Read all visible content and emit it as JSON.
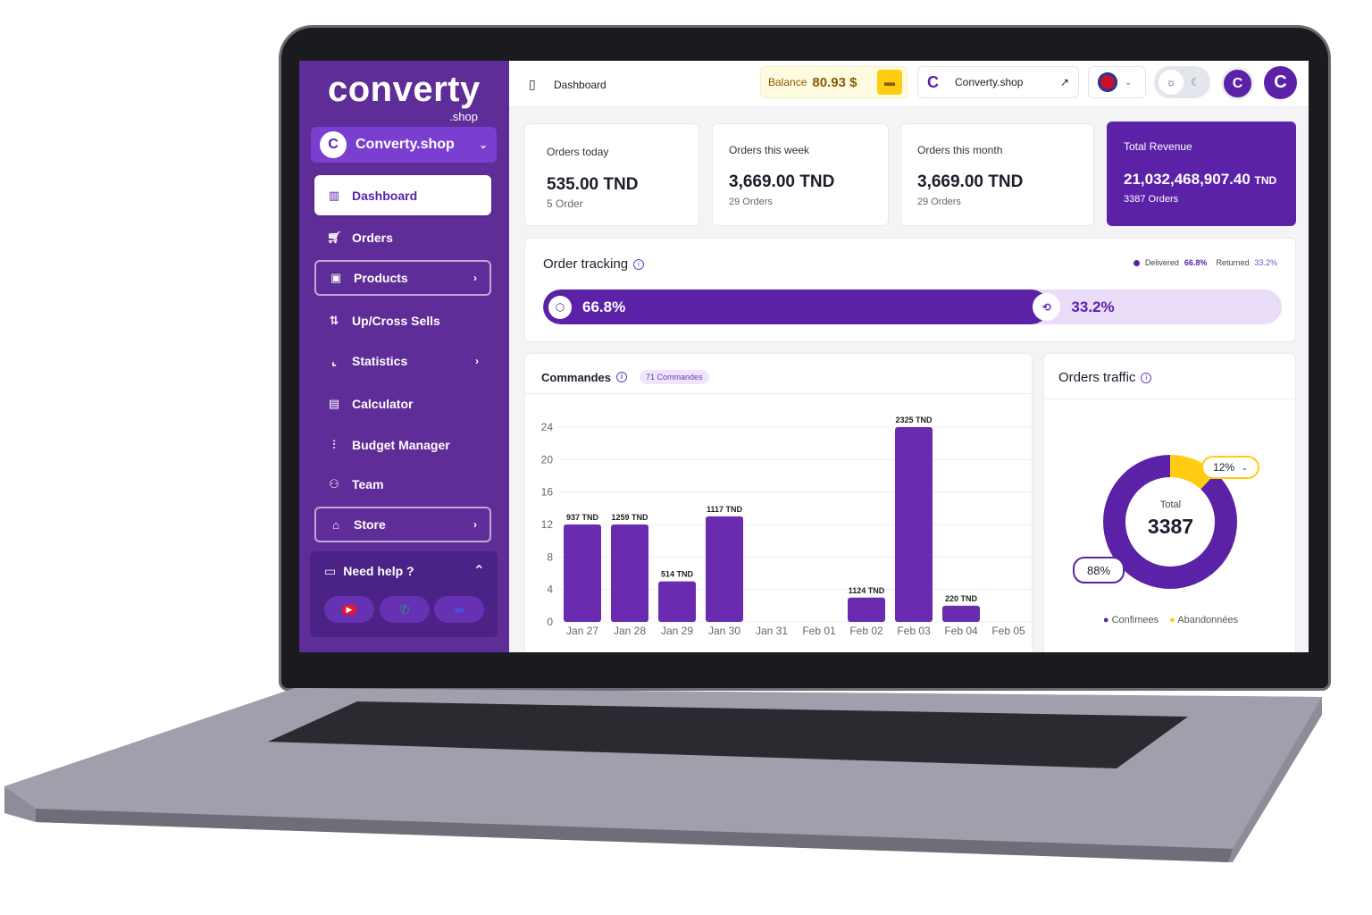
{
  "brand": {
    "logo": "converty",
    "logo_sub": ".shop",
    "store_name": "Converty.shop",
    "store_initial": "C"
  },
  "sidebar": {
    "items": [
      {
        "label": "Dashboard",
        "icon": "bar-chart-icon"
      },
      {
        "label": "Orders",
        "icon": "cart-icon"
      },
      {
        "label": "Products",
        "icon": "box-icon"
      },
      {
        "label": "Up/Cross Sells",
        "icon": "upsell-cart-icon"
      },
      {
        "label": "Statistics",
        "icon": "line-chart-icon"
      },
      {
        "label": "Calculator",
        "icon": "calculator-icon"
      },
      {
        "label": "Budget Manager",
        "icon": "sliders-icon"
      },
      {
        "label": "Team",
        "icon": "users-icon"
      },
      {
        "label": "Store",
        "icon": "store-icon"
      }
    ],
    "help": {
      "label": "Need help ?"
    }
  },
  "header": {
    "title": "Dashboard",
    "balance_label": "Balance",
    "balance_value": "80.93 $",
    "store_link": "Converty.shop",
    "language": "EN"
  },
  "kpis": [
    {
      "label": "Orders today",
      "value": "535.00 TND",
      "sub": "5 Order"
    },
    {
      "label": "Orders this week",
      "value": "3,669.00 TND",
      "sub": "29 Orders"
    },
    {
      "label": "Orders this month",
      "value": "3,669.00 TND",
      "sub": "29 Orders"
    },
    {
      "label": "Total Revenue",
      "value": "21,032,468,907.40",
      "unit": "TND",
      "sub": "3387 Orders"
    }
  ],
  "tracking": {
    "title": "Order tracking",
    "delivered_label": "Delivered",
    "delivered": "66.8%",
    "returned_label": "Returned",
    "returned": "33.2%",
    "delivered_pct": 66.8,
    "colors": {
      "delivered": "#5b22a8",
      "returned": "#e9dcf8"
    }
  },
  "commandes": {
    "title": "Commandes",
    "badge": "71 Commandes"
  },
  "chart_data": [
    {
      "type": "bar",
      "title": "Commandes",
      "categories": [
        "Jan 27",
        "Jan 28",
        "Jan 29",
        "Jan 30",
        "Jan 31",
        "Feb 01",
        "Feb 02",
        "Feb 03",
        "Feb 04",
        "Feb 05"
      ],
      "values": [
        12,
        12,
        5,
        13,
        0,
        0,
        3,
        24,
        2,
        0
      ],
      "data_labels": [
        "937 TND",
        "1259 TND",
        "514 TND",
        "1117 TND",
        "",
        "",
        "1124 TND",
        "2325 TND",
        "220 TND",
        ""
      ],
      "yticks": [
        0,
        4,
        8,
        12,
        16,
        20,
        24
      ],
      "ylim": [
        0,
        24
      ],
      "grid": true,
      "color": "#6a2bb0"
    },
    {
      "type": "pie",
      "title": "Orders traffic",
      "center_label": "Total",
      "center_value": "3387",
      "slices": [
        {
          "name": "Confimees",
          "value": 88,
          "label": "88%",
          "color": "#5b22a8"
        },
        {
          "name": "Abandonnées",
          "value": 12,
          "label": "12%",
          "color": "#ffcc11"
        }
      ]
    }
  ]
}
